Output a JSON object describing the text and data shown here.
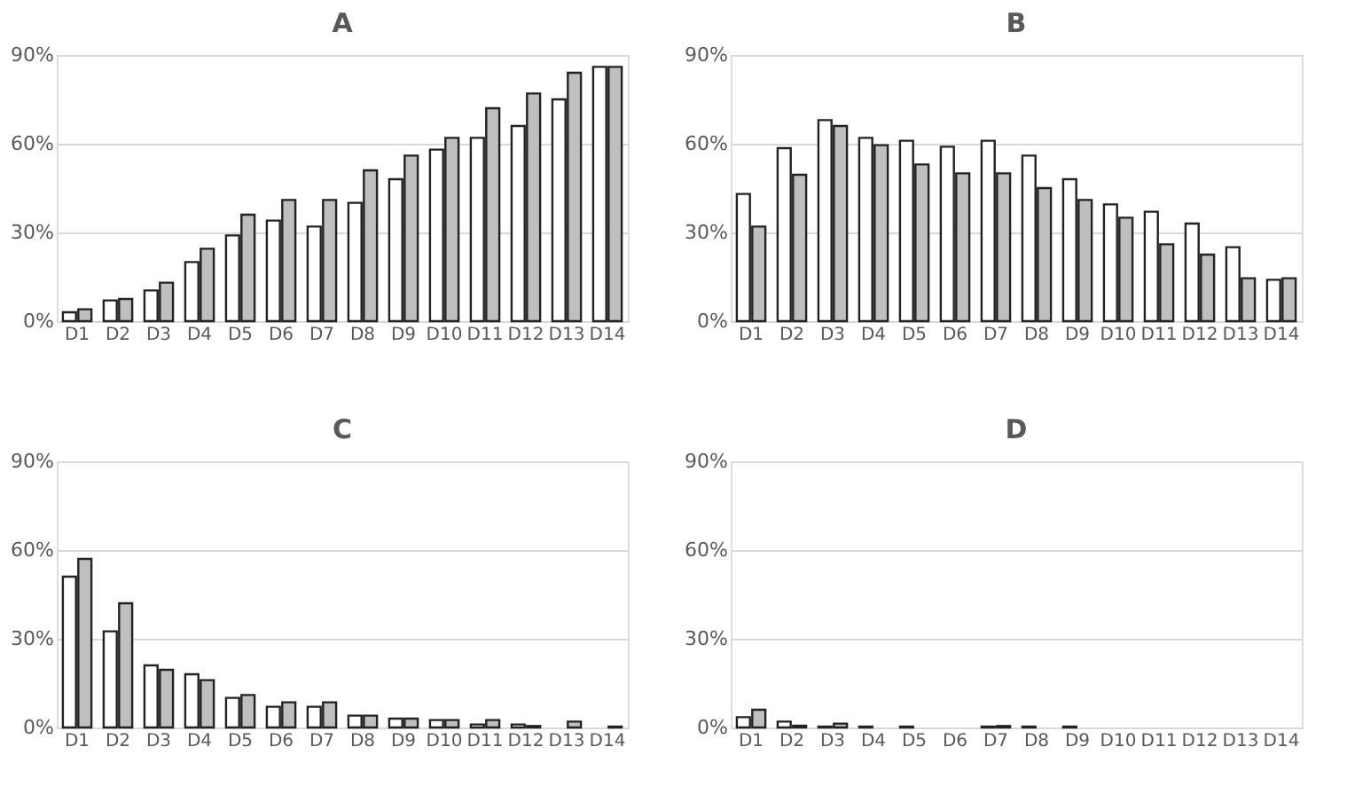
{
  "chart_data": [
    {
      "type": "bar",
      "title": "A",
      "categories": [
        "D1",
        "D2",
        "D3",
        "D4",
        "D5",
        "D6",
        "D7",
        "D8",
        "D9",
        "D10",
        "D11",
        "D12",
        "D13",
        "D14"
      ],
      "ylim": [
        0,
        90
      ],
      "yticks": [
        {
          "value": 0,
          "label": "0%"
        },
        {
          "value": 30,
          "label": "30%"
        },
        {
          "value": 60,
          "label": "60%"
        },
        {
          "value": 90,
          "label": "90%"
        }
      ],
      "grid": "y",
      "legend": false,
      "series": [
        {
          "color": "#ffffff",
          "values": [
            3,
            7,
            10.4,
            20,
            29,
            34,
            32,
            40,
            48,
            58,
            62,
            66,
            75,
            86
          ]
        },
        {
          "color": "#bfbfbf",
          "values": [
            4,
            7.5,
            13,
            24.5,
            36,
            41,
            41,
            51,
            56,
            62,
            72,
            77,
            84,
            86
          ]
        }
      ]
    },
    {
      "type": "bar",
      "title": "B",
      "categories": [
        "D1",
        "D2",
        "D3",
        "D4",
        "D5",
        "D6",
        "D7",
        "D8",
        "D9",
        "D10",
        "D11",
        "D12",
        "D13",
        "D14"
      ],
      "ylim": [
        0,
        90
      ],
      "yticks": [
        {
          "value": 0,
          "label": "0%"
        },
        {
          "value": 30,
          "label": "30%"
        },
        {
          "value": 60,
          "label": "60%"
        },
        {
          "value": 90,
          "label": "90%"
        }
      ],
      "grid": "y",
      "legend": false,
      "series": [
        {
          "color": "#ffffff",
          "values": [
            43,
            58.5,
            68,
            62,
            61,
            59,
            61,
            56,
            48,
            39.5,
            37,
            33,
            25,
            14
          ]
        },
        {
          "color": "#bfbfbf",
          "values": [
            32,
            49.5,
            66,
            59.5,
            53,
            50,
            50,
            45,
            41,
            35,
            26,
            22.5,
            14.5,
            14.5
          ]
        }
      ]
    },
    {
      "type": "bar",
      "title": "C",
      "categories": [
        "D1",
        "D2",
        "D3",
        "D4",
        "D5",
        "D6",
        "D7",
        "D8",
        "D9",
        "D10",
        "D11",
        "D12",
        "D13",
        "D14"
      ],
      "ylim": [
        0,
        90
      ],
      "yticks": [
        {
          "value": 0,
          "label": "0%"
        },
        {
          "value": 30,
          "label": "30%"
        },
        {
          "value": 60,
          "label": "60%"
        },
        {
          "value": 90,
          "label": "90%"
        }
      ],
      "grid": "y",
      "legend": false,
      "series": [
        {
          "color": "#ffffff",
          "values": [
            51,
            32.5,
            21,
            18,
            10,
            7,
            7,
            4,
            3,
            2.5,
            1,
            1,
            null,
            null
          ]
        },
        {
          "color": "#bfbfbf",
          "values": [
            57,
            42,
            19.5,
            16,
            11,
            8.5,
            8.5,
            4,
            3,
            2.5,
            2.5,
            0.5,
            2,
            0.3
          ]
        }
      ]
    },
    {
      "type": "bar",
      "title": "D",
      "categories": [
        "D1",
        "D2",
        "D3",
        "D4",
        "D5",
        "D6",
        "D7",
        "D8",
        "D9",
        "D10",
        "D11",
        "D12",
        "D13",
        "D14"
      ],
      "ylim": [
        0,
        90
      ],
      "yticks": [
        {
          "value": 0,
          "label": "0%"
        },
        {
          "value": 30,
          "label": "30%"
        },
        {
          "value": 60,
          "label": "60%"
        },
        {
          "value": 90,
          "label": "90%"
        }
      ],
      "grid": "y",
      "legend": false,
      "series": [
        {
          "color": "#ffffff",
          "values": [
            3.5,
            2,
            0.3,
            0.3,
            0.3,
            null,
            0.3,
            0.3,
            0.3,
            null,
            null,
            null,
            null,
            null
          ]
        },
        {
          "color": "#bfbfbf",
          "values": [
            6,
            0.6,
            1.3,
            null,
            null,
            null,
            0.5,
            null,
            null,
            null,
            null,
            null,
            null,
            null
          ]
        }
      ]
    }
  ]
}
